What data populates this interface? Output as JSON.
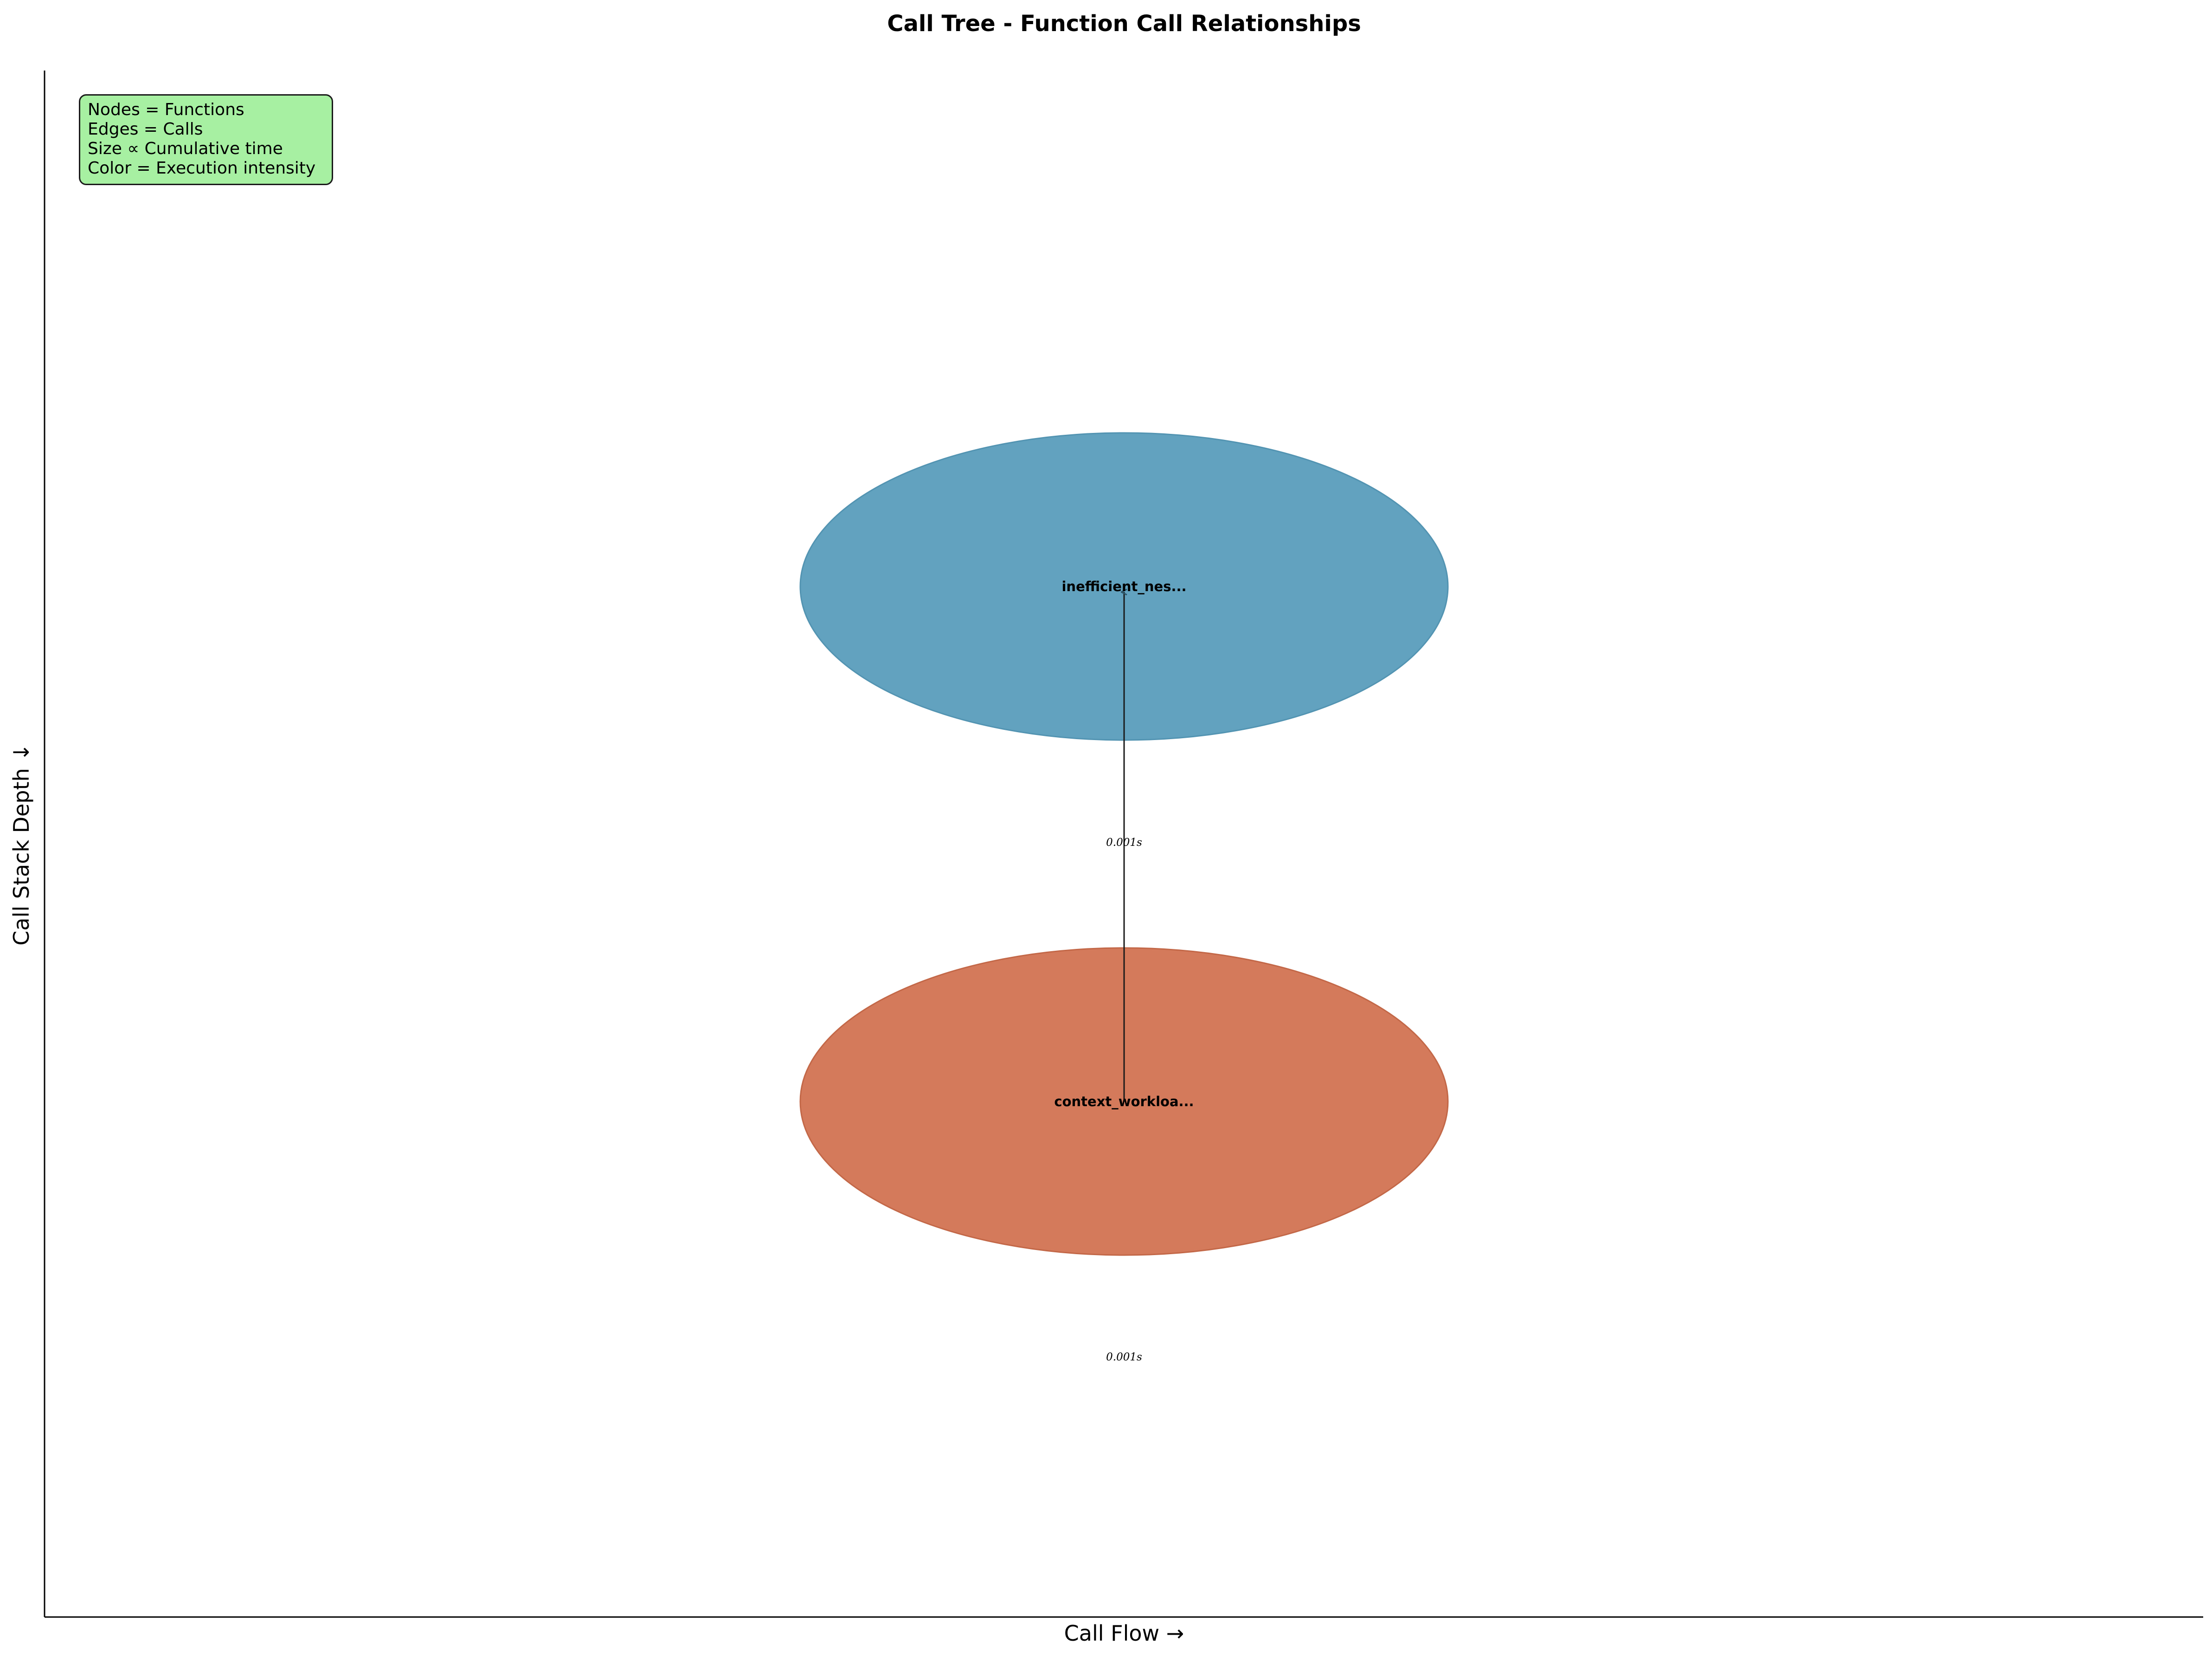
{
  "diagram": {
    "title": "Call Tree - Function Call Relationships",
    "xlabel": "Call Flow →",
    "ylabel": "Call Stack Depth ↓",
    "legend": [
      "Nodes = Functions",
      "Edges = Calls",
      "Size ∝ Cumulative time",
      "Color = Execution intensity"
    ],
    "nodes": [
      {
        "id": "inefficient",
        "label": "inefficient_nes...",
        "time_label": "0.001s",
        "color": "#5a9ebc",
        "stroke": "#4a8fae"
      },
      {
        "id": "context",
        "label": "context_workloa...",
        "time_label": "0.001s",
        "color": "#d27353",
        "stroke": "#c0603f"
      }
    ],
    "edges": [
      {
        "from": "context",
        "to": "inefficient"
      }
    ]
  }
}
